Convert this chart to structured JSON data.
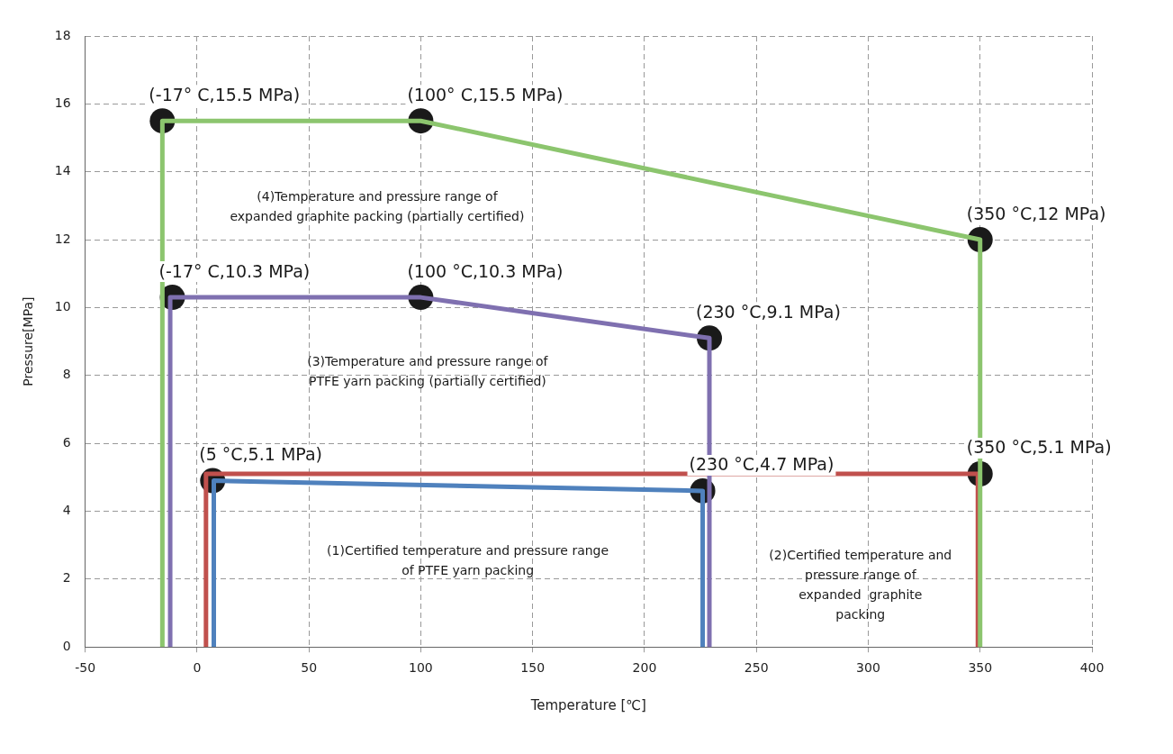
{
  "chart_data": {
    "type": "line",
    "xlabel": "Temperature [℃]",
    "ylabel": "Pressure[MPa]",
    "xlim": [
      -50,
      400
    ],
    "xticks": [
      -50,
      0,
      50,
      100,
      150,
      200,
      250,
      300,
      350,
      400
    ],
    "ylim": [
      0,
      18
    ],
    "yticks": [
      0,
      2,
      4,
      6,
      8,
      10,
      12,
      14,
      16,
      18
    ],
    "grid": true,
    "legend": false,
    "marker": "none",
    "line_style": "solid",
    "series": [
      {
        "color": "#8cc56e",
        "x": [
          -15.5,
          -15.5,
          100,
          350,
          350
        ],
        "values": [
          0,
          15.5,
          15.5,
          12,
          0
        ]
      },
      {
        "color": "#7f70b0",
        "x": [
          -12,
          -12,
          100,
          229,
          229
        ],
        "values": [
          0,
          10.3,
          10.3,
          9.1,
          0
        ]
      },
      {
        "color": "#c0504d",
        "x": [
          4,
          4,
          349,
          349
        ],
        "values": [
          0,
          5.1,
          5.1,
          0
        ]
      },
      {
        "color": "#4f81bd",
        "x": [
          7.5,
          7.5,
          226,
          226
        ],
        "values": [
          0,
          4.9,
          4.6,
          0
        ]
      },
      {
        "type": "scatter",
        "marker": "circle",
        "color": "#1a1a1a",
        "x": [
          -15.5,
          100,
          350,
          -11,
          100,
          229,
          7,
          226,
          350
        ],
        "values": [
          15.5,
          15.5,
          12,
          10.3,
          10.3,
          9.1,
          4.9,
          4.6,
          5.1
        ]
      }
    ],
    "annotations": [
      {
        "text": "(-17° C,15.5 MPa)",
        "x": -15.5,
        "y": 15.5
      },
      {
        "text": "(100° C,15.5 MPa)",
        "x": 100,
        "y": 15.5
      },
      {
        "text": "(350 °C,12 MPa)",
        "x": 350,
        "y": 12
      },
      {
        "text": "(-17° C,10.3 MPa)",
        "x": -11,
        "y": 10.3
      },
      {
        "text": "(100 °C,10.3 MPa)",
        "x": 100,
        "y": 10.3
      },
      {
        "text": "(230 °C,9.1 MPa)",
        "x": 229,
        "y": 9.1
      },
      {
        "text": "(5 °C,5.1 MPa)",
        "x": 7,
        "y": 4.9
      },
      {
        "text": "(230 °C,4.7 MPa)",
        "x": 226,
        "y": 4.6
      },
      {
        "text": "(350 °C,5.1 MPa)",
        "x": 350,
        "y": 5.1
      },
      "(4)Temperature and pressure range of\nexpanded graphite packing (partially certified)",
      "(3)Temperature and pressure range of\nPTFE yarn packing (partially certified)",
      "(1)Certified temperature and pressure range\nof PTFE yarn packing",
      "(2)Certified temperature and\npressure range of\nexpanded  graphite\npacking"
    ]
  }
}
